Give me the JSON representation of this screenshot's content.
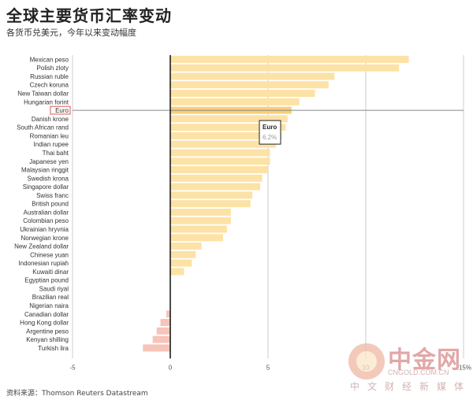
{
  "title": "全球主要货币汇率变动",
  "subtitle": "各货币兑美元，今年以来变动幅度",
  "source": "资料来源：Thomson Reuters Datastream",
  "watermark": {
    "name": "中金网",
    "domain": "CNGOLD.COM.CN",
    "tagline": "中文财经新媒体"
  },
  "tooltip": {
    "label": "Euro",
    "value": "6.2%"
  },
  "colors": {
    "positive": "#fde2a6",
    "highlight": "#f8cf7a",
    "negative": "#f6c4b8",
    "zero_line": "#111111",
    "grid": "#cccccc"
  },
  "chart_data": {
    "type": "bar",
    "orientation": "horizontal",
    "title": "全球主要货币汇率变动",
    "subtitle": "各货币兑美元，今年以来变动幅度",
    "xlim": [
      -5,
      15
    ],
    "x_ticks": [
      "-5",
      "0",
      "5",
      "10",
      "15%"
    ],
    "highlighted": "Euro",
    "categories": [
      "Mexican peso",
      "Polish zloty",
      "Russian ruble",
      "Czech koruna",
      "New Taiwan dollar",
      "Hungarian forint",
      "Euro",
      "Danish krone",
      "South African rand",
      "Romanian leu",
      "Indian rupee",
      "Thai baht",
      "Japanese yen",
      "Malaysian ringgit",
      "Swedish krona",
      "Singapore dollar",
      "Swiss franc",
      "British pound",
      "Australian dollar",
      "Colombian peso",
      "Ukrainian hryvnia",
      "Norwegian krone",
      "New Zealand dollar",
      "Chinese yuan",
      "Indonesian rupiah",
      "Kuwaiti dinar",
      "Egyptian pound",
      "Saudi riyal",
      "Brazilian real",
      "Nigerian naira",
      "Canadian dollar",
      "Hong Kong dollar",
      "Argentine peso",
      "Kenyan shilling",
      "Turkish lira"
    ],
    "values": [
      12.2,
      11.7,
      8.4,
      8.1,
      7.4,
      6.6,
      6.2,
      6.0,
      5.9,
      5.7,
      5.4,
      5.1,
      5.1,
      5.0,
      4.7,
      4.6,
      4.2,
      4.1,
      3.1,
      3.1,
      2.9,
      2.7,
      1.6,
      1.3,
      1.1,
      0.7,
      0.0,
      0.0,
      0.0,
      0.0,
      -0.2,
      -0.5,
      -0.7,
      -0.9,
      -1.4
    ]
  }
}
